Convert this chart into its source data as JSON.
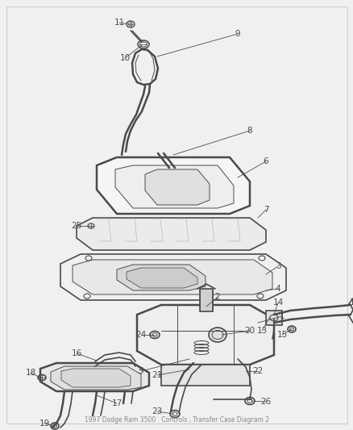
{
  "bg_color": "#f0f0f0",
  "line_color": "#4a4a4a",
  "label_color": "#4a4a4a",
  "fig_width": 4.39,
  "fig_height": 5.33,
  "dpi": 100,
  "footer_text": "1997 Dodge Ram 3500   Controls , Transfer Case Diagram 2",
  "footer_color": "#888888",
  "border_color": "#cccccc",
  "hatch_color": "#888888"
}
